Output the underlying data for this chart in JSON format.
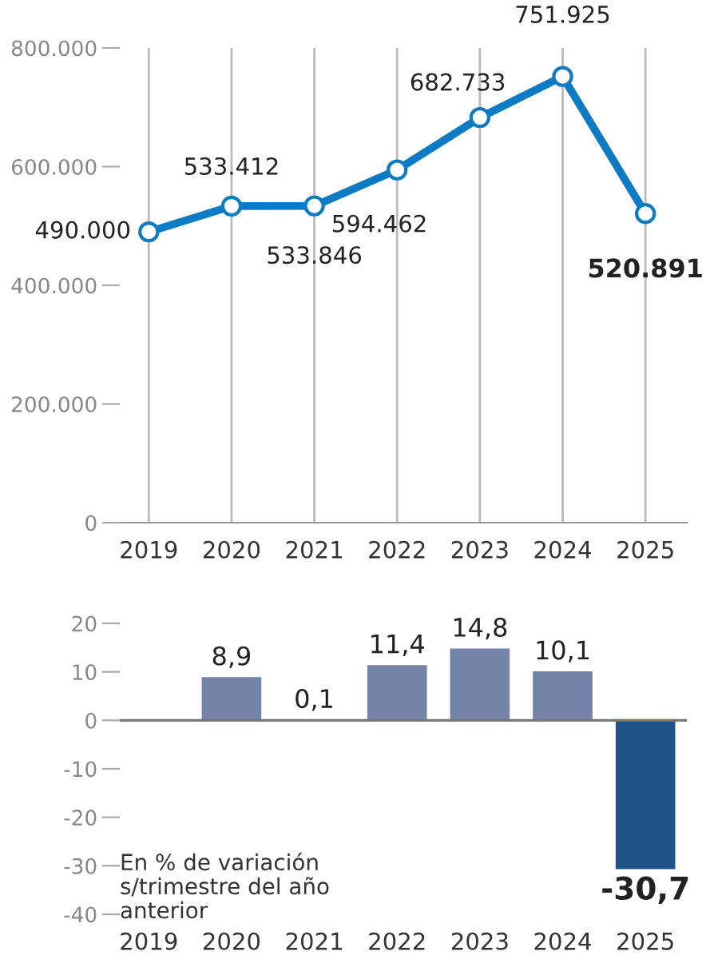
{
  "chart_data": [
    {
      "type": "line",
      "categories": [
        "2019",
        "2020",
        "2021",
        "2022",
        "2023",
        "2024",
        "2025"
      ],
      "series": [
        {
          "color": "#0a7bc4",
          "values": [
            490000,
            533412,
            533846,
            594462,
            682733,
            751925,
            520891
          ]
        }
      ],
      "value_labels": [
        "490.000",
        "533.412",
        "533.846",
        "594.462",
        "682.733",
        "751.925",
        "520.891"
      ],
      "ylim": [
        0,
        800000
      ],
      "yticks": [
        {
          "value": 0,
          "label": "0"
        },
        {
          "value": 200000,
          "label": "200.000"
        },
        {
          "value": 400000,
          "label": "400.000"
        },
        {
          "value": 600000,
          "label": "600.000"
        },
        {
          "value": 800000,
          "label": "800.000"
        }
      ],
      "marker": "circle",
      "line_style": "solid",
      "grid": "x",
      "legend": false
    },
    {
      "type": "bar",
      "categories": [
        "2019",
        "2020",
        "2021",
        "2022",
        "2023",
        "2024",
        "2025"
      ],
      "values": [
        null,
        8.9,
        0.1,
        11.4,
        14.8,
        10.1,
        -30.7
      ],
      "colors": [
        "#7484a8",
        "#7484a8",
        "#1f5287",
        "#7484a8",
        "#7484a8",
        "#7484a8",
        "#1f5287"
      ],
      "value_labels": [
        null,
        "8,9",
        "0,1",
        "11,4",
        "14,8",
        "10,1",
        "-30,7"
      ],
      "ylim": [
        -40,
        20
      ],
      "yticks": [
        20,
        10,
        0,
        -10,
        -20,
        -30,
        -40
      ],
      "ref_lines": [
        {
          "axis": "y",
          "value": 0,
          "color": "#777777"
        }
      ],
      "annotations": [
        "En % de variación\ns/trimestre del año\nanterior"
      ],
      "grid": false,
      "legend": false
    }
  ]
}
